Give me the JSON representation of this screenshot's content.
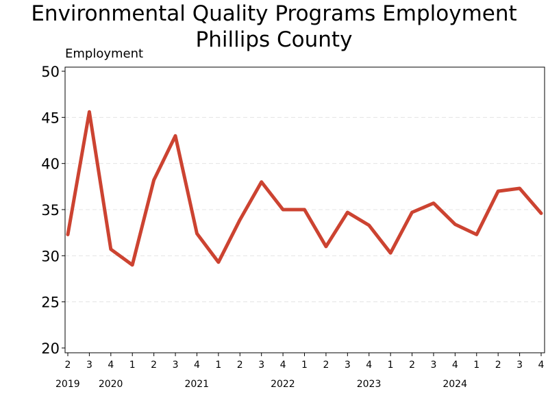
{
  "chart_data": {
    "type": "line",
    "title": "Environmental Quality Programs Employment",
    "subtitle": "Phillips County",
    "ylabel": "Employment",
    "ylim": [
      20,
      50
    ],
    "yticks": [
      "20",
      "25",
      "30",
      "35",
      "40",
      "45",
      "50"
    ],
    "grid": "horizontal dashed",
    "x_quarters": [
      "2",
      "3",
      "4",
      "1",
      "2",
      "3",
      "4",
      "1",
      "2",
      "3",
      "4",
      "1",
      "2",
      "3",
      "4",
      "1",
      "2",
      "3",
      "4",
      "1",
      "2",
      "3",
      "4"
    ],
    "years": [
      {
        "label": "2019",
        "start_index": 0
      },
      {
        "label": "2020",
        "start_index": 2
      },
      {
        "label": "2021",
        "start_index": 6
      },
      {
        "label": "2022",
        "start_index": 10
      },
      {
        "label": "2023",
        "start_index": 14
      },
      {
        "label": "2024",
        "start_index": 18
      }
    ],
    "series": [
      {
        "color": "#cc4331",
        "values": [
          32.3,
          45.6,
          30.7,
          29.0,
          38.2,
          43.0,
          32.4,
          29.3,
          33.9,
          38.0,
          35.0,
          35.0,
          31.0,
          34.7,
          33.3,
          30.3,
          34.7,
          35.7,
          33.4,
          32.3,
          37.0,
          37.3,
          34.6
        ]
      }
    ]
  }
}
